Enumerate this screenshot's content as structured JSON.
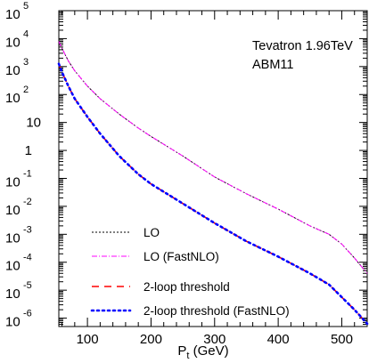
{
  "chart_data": {
    "type": "line",
    "xlabel_main": "P",
    "xlabel_sub": "t",
    "xlabel_unit": " (GeV)",
    "xlim": [
      55,
      540
    ],
    "ylim_log10": [
      -6.3,
      5
    ],
    "yscale": "log",
    "x_ticks": [
      100,
      200,
      300,
      400,
      500
    ],
    "x_tick_labels": [
      "100",
      "200",
      "300",
      "400",
      "500"
    ],
    "y_ticks": [
      {
        "exp": 5,
        "base": "10",
        "sup": "5"
      },
      {
        "exp": 4,
        "base": "10",
        "sup": "4"
      },
      {
        "exp": 3,
        "base": "10",
        "sup": "3"
      },
      {
        "exp": 2,
        "base": "10",
        "sup": "2"
      },
      {
        "exp": 1,
        "base": "10",
        "sup": ""
      },
      {
        "exp": 0,
        "base": "1",
        "sup": ""
      },
      {
        "exp": -1,
        "base": "10",
        "sup": "-1"
      },
      {
        "exp": -2,
        "base": "10",
        "sup": "-2"
      },
      {
        "exp": -3,
        "base": "10",
        "sup": "-3"
      },
      {
        "exp": -4,
        "base": "10",
        "sup": "-4"
      },
      {
        "exp": -5,
        "base": "10",
        "sup": "-5"
      },
      {
        "exp": -6,
        "base": "10",
        "sup": "-6"
      }
    ],
    "annotations": [
      "Tevatron 1.96TeV",
      "ABM11"
    ],
    "legend_position": "bottom-left",
    "series": [
      {
        "name": "LO",
        "color": "#000000",
        "style": "dotted",
        "x": [
          55,
          60,
          70,
          80,
          100,
          120,
          150,
          180,
          200,
          250,
          300,
          350,
          400,
          450,
          480,
          500,
          520,
          540
        ],
        "log10_y": [
          3.9,
          3.65,
          3.2,
          2.85,
          2.3,
          1.85,
          1.3,
          0.8,
          0.5,
          -0.2,
          -0.95,
          -1.55,
          -2.1,
          -2.7,
          -3.0,
          -3.35,
          -3.85,
          -4.4
        ]
      },
      {
        "name": "LO (FastNLO)",
        "color": "#ff00ff",
        "style": "dash-dot",
        "x": [
          55,
          60,
          70,
          80,
          100,
          120,
          150,
          180,
          200,
          250,
          300,
          350,
          400,
          450,
          480,
          500,
          520,
          540
        ],
        "log10_y": [
          3.9,
          3.65,
          3.2,
          2.85,
          2.3,
          1.85,
          1.3,
          0.8,
          0.5,
          -0.2,
          -0.95,
          -1.55,
          -2.1,
          -2.7,
          -3.0,
          -3.35,
          -3.85,
          -4.4
        ]
      },
      {
        "name": "2-loop threshold",
        "color": "#ff0000",
        "style": "dashed",
        "x": [
          55,
          60,
          70,
          80,
          100,
          120,
          150,
          180,
          200,
          250,
          300,
          350,
          400,
          450,
          480,
          500,
          520,
          540
        ],
        "log10_y": [
          3.1,
          2.8,
          2.3,
          1.85,
          1.2,
          0.6,
          -0.2,
          -0.85,
          -1.2,
          -1.9,
          -2.6,
          -3.25,
          -3.8,
          -4.4,
          -4.8,
          -5.25,
          -5.7,
          -6.2
        ]
      },
      {
        "name": "2-loop threshold (FastNLO)",
        "color": "#0000ff",
        "style": "dotted-thick",
        "x": [
          55,
          60,
          70,
          80,
          100,
          120,
          150,
          180,
          200,
          250,
          300,
          350,
          400,
          450,
          480,
          500,
          520,
          540
        ],
        "log10_y": [
          3.1,
          2.8,
          2.3,
          1.85,
          1.2,
          0.6,
          -0.2,
          -0.85,
          -1.2,
          -1.9,
          -2.6,
          -3.25,
          -3.8,
          -4.4,
          -4.8,
          -5.25,
          -5.7,
          -6.2
        ]
      }
    ]
  }
}
